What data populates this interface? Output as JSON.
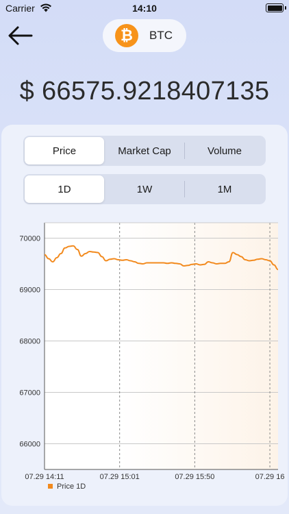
{
  "status_bar": {
    "carrier": "Carrier",
    "time": "14:10"
  },
  "header": {
    "coin_symbol": "BTC",
    "logo_glyph": "₿"
  },
  "price": {
    "display": "$ 66575.9218407135"
  },
  "metric_tabs": [
    {
      "label": "Price",
      "active": true
    },
    {
      "label": "Market Cap",
      "active": false
    },
    {
      "label": "Volume",
      "active": false
    }
  ],
  "range_tabs": [
    {
      "label": "1D",
      "active": true
    },
    {
      "label": "1W",
      "active": false
    },
    {
      "label": "1M",
      "active": false
    }
  ],
  "colors": {
    "accent": "#f7931a",
    "line": "#f28a1e"
  },
  "chart_data": {
    "type": "line",
    "y_ticks": [
      66000,
      67000,
      68000,
      69000,
      70000
    ],
    "ylim": [
      65500,
      70300
    ],
    "x_tick_labels": [
      "07.29 14:11",
      "07.29 15:01",
      "07.29 15:50",
      "07.29 16"
    ],
    "legend": "Price 1D",
    "grid": true,
    "series": [
      {
        "name": "Price 1D",
        "values": [
          69680,
          69600,
          69540,
          69620,
          69700,
          69810,
          69840,
          69850,
          69780,
          69650,
          69700,
          69740,
          69730,
          69720,
          69640,
          69560,
          69590,
          69600,
          69580,
          69570,
          69580,
          69560,
          69540,
          69510,
          69500,
          69520,
          69520,
          69520,
          69520,
          69520,
          69510,
          69520,
          69510,
          69500,
          69460,
          69470,
          69490,
          69500,
          69480,
          69490,
          69540,
          69520,
          69500,
          69510,
          69510,
          69540,
          69720,
          69680,
          69640,
          69580,
          69560,
          69570,
          69590,
          69600,
          69580,
          69560,
          69480,
          69390
        ]
      }
    ]
  }
}
